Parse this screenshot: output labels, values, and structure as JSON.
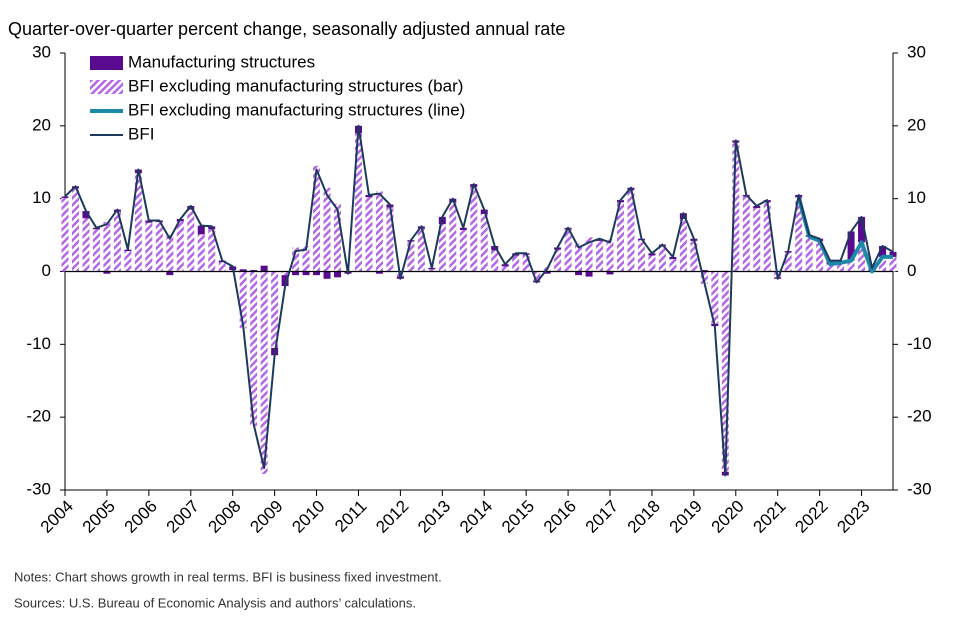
{
  "chart_data": {
    "type": "bar",
    "title": "Quarter-over-quarter percent change, seasonally adjusted annual rate",
    "notes": "Notes: Chart shows growth in real terms. BFI is business fixed investment.",
    "sources": "Sources: U.S. Bureau of Economic Analysis and authors’ calculations.",
    "categories": [
      "2004",
      null,
      null,
      null,
      "2005",
      null,
      null,
      null,
      "2006",
      null,
      null,
      null,
      "2007",
      null,
      null,
      null,
      "2008",
      null,
      null,
      null,
      "2009",
      null,
      null,
      null,
      "2010",
      null,
      null,
      null,
      "2011",
      null,
      null,
      null,
      "2012",
      null,
      null,
      null,
      "2013",
      null,
      null,
      null,
      "2014",
      null,
      null,
      null,
      "2015",
      null,
      null,
      null,
      "2016",
      null,
      null,
      null,
      "2017",
      null,
      null,
      null,
      "2018",
      null,
      null,
      null,
      "2019",
      null,
      null,
      null,
      "2020",
      null,
      null,
      null,
      "2021",
      null,
      null,
      null,
      "2022",
      null,
      null,
      null,
      "2023",
      null,
      null,
      null
    ],
    "ylim": [
      -30,
      30
    ],
    "yticks": [
      -30,
      -20,
      -10,
      0,
      10,
      20,
      30
    ],
    "y2lim": [
      -30,
      30
    ],
    "y2ticks": [
      -30,
      -20,
      -10,
      0,
      10,
      20,
      30
    ],
    "series": [
      {
        "name": "Manufacturing structures",
        "type": "bar",
        "color": "#5a0a8f",
        "values": [
          0.2,
          0.3,
          1.0,
          0.2,
          -0.3,
          0.3,
          0.2,
          0.5,
          0.3,
          0.2,
          -0.5,
          0.3,
          0.5,
          1.2,
          0.4,
          0.2,
          0.5,
          0.3,
          0.2,
          0.8,
          -1.0,
          -1.5,
          -0.5,
          -0.5,
          -0.5,
          -1.0,
          -0.8,
          -0.3,
          1.0,
          0.3,
          -0.3,
          0.4,
          -0.3,
          0.2,
          0.3,
          0.2,
          1.0,
          0.5,
          0.3,
          0.4,
          0.6,
          0.6,
          0.3,
          0.3,
          0.2,
          -0.2,
          -0.3,
          0.3,
          0.2,
          -0.5,
          -0.7,
          0.3,
          -0.4,
          0.3,
          0.3,
          0.2,
          0.3,
          0.2,
          0.3,
          0.8,
          0.3,
          0.2,
          -0.3,
          -0.5,
          0.3,
          0.2,
          0.3,
          0.3,
          -0.2,
          0.2,
          0.3,
          0.2,
          0.3,
          0.5,
          0.3,
          4.0,
          3.5,
          0.5,
          1.5,
          0.7
        ]
      },
      {
        "name": "BFI excluding manufacturing structures (bar)",
        "type": "bar",
        "color": "#b566e6",
        "pattern": "hatch",
        "values": [
          10.1,
          11.4,
          7.3,
          5.8,
          6.8,
          8.2,
          2.8,
          13.5,
          6.7,
          6.8,
          5.0,
          6.9,
          8.5,
          5.1,
          5.8,
          1.3,
          0.2,
          -7.8,
          -21.2,
          -27.8,
          -10.5,
          -0.5,
          3.3,
          3.5,
          14.5,
          11.5,
          9.3,
          0,
          19.0,
          10.2,
          11.0,
          8.8,
          -0.7,
          4.1,
          5.9,
          0.3,
          6.5,
          9.5,
          5.7,
          11.6,
          7.9,
          2.9,
          0.7,
          2.2,
          2.3,
          -1.3,
          0.6,
          3.0,
          5.8,
          3.8,
          4.7,
          4.2,
          4.4,
          9.5,
          11.2,
          4.3,
          2.2,
          3.5,
          1.7,
          7.2,
          4.2,
          -1.7,
          -7.2,
          -27.5,
          17.7,
          10.3,
          8.7,
          9.5,
          -0.8,
          2.6,
          10.2,
          4.8,
          4.2,
          1.0,
          1.2,
          1.5,
          4.0,
          0.0,
          2.0,
          2.0
        ]
      },
      {
        "name": "BFI excluding manufacturing structures (line)",
        "type": "line",
        "color": "#1a8aa8",
        "width": 4,
        "values": [
          null,
          null,
          null,
          null,
          null,
          null,
          null,
          null,
          null,
          null,
          null,
          null,
          null,
          null,
          null,
          null,
          null,
          null,
          null,
          null,
          null,
          null,
          null,
          null,
          null,
          null,
          null,
          null,
          null,
          null,
          null,
          null,
          null,
          null,
          null,
          null,
          null,
          null,
          null,
          null,
          null,
          null,
          null,
          null,
          null,
          null,
          null,
          null,
          null,
          null,
          null,
          null,
          null,
          null,
          null,
          null,
          null,
          null,
          null,
          null,
          null,
          null,
          null,
          null,
          null,
          null,
          null,
          null,
          null,
          null,
          10.2,
          4.8,
          4.2,
          1.0,
          1.2,
          1.5,
          4.0,
          0.0,
          2.0,
          2.0
        ]
      },
      {
        "name": "BFI",
        "type": "line",
        "color": "#1d3a5c",
        "width": 2,
        "values": [
          10.3,
          11.7,
          8.3,
          6.0,
          6.5,
          8.5,
          3.0,
          14.0,
          7.0,
          7.0,
          4.5,
          7.2,
          9.0,
          6.3,
          6.2,
          1.5,
          0.7,
          -7.5,
          -21.0,
          -27.0,
          -11.5,
          -2.0,
          2.8,
          3.0,
          14.0,
          10.5,
          8.5,
          -0.3,
          20.0,
          10.5,
          10.7,
          9.2,
          -1.0,
          4.3,
          6.2,
          0.5,
          7.5,
          10.0,
          6.0,
          12.0,
          8.5,
          3.5,
          1.0,
          2.5,
          2.5,
          -1.5,
          0.3,
          3.3,
          6.0,
          3.3,
          4.0,
          4.5,
          4.0,
          9.8,
          11.5,
          4.5,
          2.5,
          3.7,
          2.0,
          8.0,
          4.5,
          -1.5,
          -7.5,
          -28.0,
          18.0,
          10.5,
          9.0,
          9.8,
          -1.0,
          2.8,
          10.5,
          5.0,
          4.5,
          1.5,
          1.5,
          5.5,
          7.5,
          0.5,
          3.5,
          2.7
        ]
      }
    ]
  }
}
